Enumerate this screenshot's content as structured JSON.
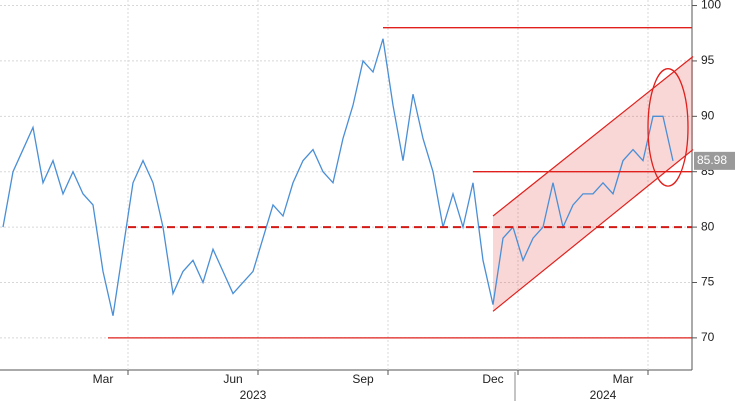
{
  "chart_data": {
    "type": "line",
    "color": "#4a8fd6",
    "categories": [
      null,
      null,
      null,
      null,
      null,
      null,
      null,
      null,
      null,
      null,
      "Mar",
      null,
      null,
      null,
      null,
      null,
      null,
      null,
      null,
      null,
      null,
      null,
      null,
      "Jun",
      null,
      null,
      null,
      null,
      null,
      null,
      null,
      null,
      null,
      null,
      null,
      null,
      "Sep",
      null,
      null,
      null,
      null,
      null,
      null,
      null,
      null,
      null,
      null,
      null,
      null,
      "Dec",
      null,
      null,
      null,
      null,
      null,
      null,
      null,
      null,
      null,
      null,
      null,
      null,
      "Mar",
      null,
      null,
      null,
      null,
      null
    ],
    "years": [
      null,
      null,
      null,
      null,
      null,
      null,
      null,
      null,
      null,
      null,
      null,
      null,
      null,
      null,
      null,
      null,
      null,
      null,
      null,
      null,
      null,
      null,
      null,
      null,
      null,
      "2023",
      null,
      null,
      null,
      null,
      null,
      null,
      null,
      null,
      null,
      null,
      null,
      null,
      null,
      null,
      null,
      null,
      null,
      null,
      null,
      null,
      null,
      null,
      null,
      null,
      null,
      null,
      null,
      null,
      null,
      null,
      null,
      null,
      null,
      null,
      "2024",
      null,
      null,
      null,
      null,
      null,
      null,
      null
    ],
    "values": [
      80,
      85,
      87,
      89,
      84,
      86,
      83,
      85,
      83,
      82,
      76,
      72,
      78,
      84,
      86,
      84,
      80,
      74,
      76,
      77,
      75,
      78,
      76,
      74,
      75,
      76,
      79,
      82,
      81,
      84,
      86,
      87,
      85,
      84,
      88,
      91,
      95,
      94,
      97,
      91,
      86,
      92,
      88,
      85,
      80,
      83,
      80,
      84,
      77,
      73,
      79,
      80,
      77,
      79,
      80,
      84,
      80,
      82,
      83,
      83,
      84,
      83,
      86,
      87,
      86,
      90,
      90,
      85.98
    ],
    "value_labels": [
      null,
      null,
      null,
      null,
      null,
      null,
      null,
      null,
      null,
      null,
      null,
      null,
      null,
      null,
      null,
      null,
      null,
      null,
      null,
      null,
      null,
      null,
      null,
      null,
      null,
      null,
      null,
      null,
      null,
      null,
      null,
      null,
      null,
      null,
      null,
      null,
      null,
      null,
      null,
      null,
      null,
      null,
      null,
      null,
      null,
      null,
      null,
      null,
      null,
      null,
      null,
      null,
      null,
      null,
      null,
      null,
      null,
      null,
      null,
      null,
      null,
      null,
      null,
      null,
      null,
      null,
      null,
      "85.98"
    ],
    "ylim": [
      67.1,
      100.5
    ],
    "yticks": [
      70,
      75,
      80,
      85,
      90,
      95,
      100
    ],
    "grid": true,
    "reference_lines": [
      {
        "value": 98,
        "start": 38,
        "color": "#e0201c",
        "dashed": false
      },
      {
        "value": 85,
        "start": 47,
        "color": "#e0201c",
        "dashed": false
      },
      {
        "value": 80,
        "start": 12.5,
        "color": "#d21a16",
        "dashed": true
      },
      {
        "value": 70,
        "start": 10.5,
        "color": "#e0201c",
        "dashed": false
      }
    ],
    "channel": {
      "start": 49,
      "end": 69,
      "lower": [
        72.4,
        87
      ],
      "upper": [
        81,
        95.4
      ],
      "color": "#e0201c"
    },
    "highlight": {
      "center": [
        66.5,
        89
      ],
      "half_width": 2,
      "half_height": 5.3,
      "color": "#e0201c"
    }
  }
}
